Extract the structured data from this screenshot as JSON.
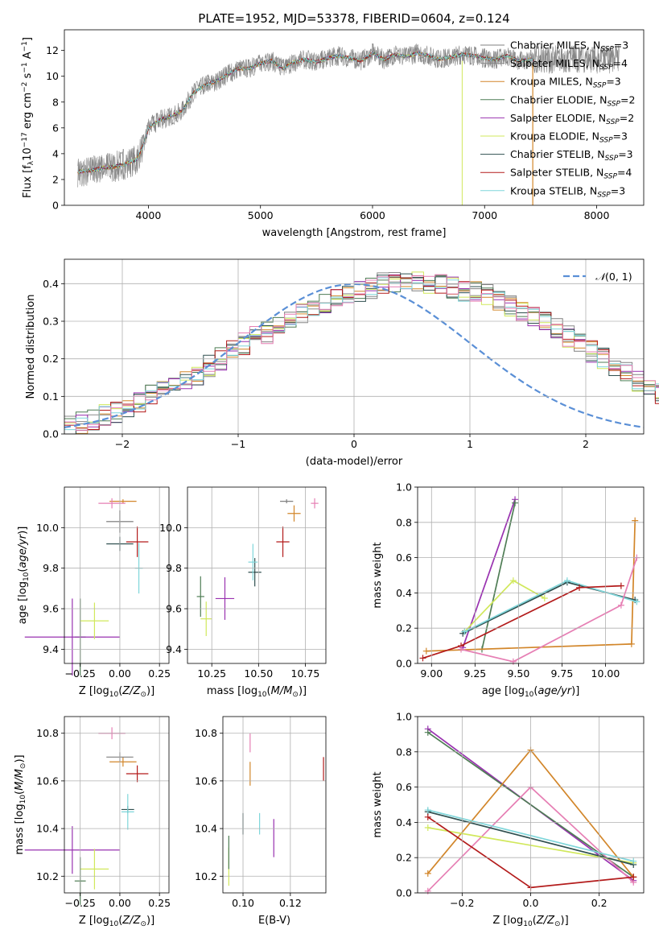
{
  "figure": {
    "title": "PLATE=1952, MJD=53378, FIBERID=0604, z=0.124"
  },
  "colors": {
    "Chabrier MILES": "#808080",
    "Salpeter MILES": "#8a8a8a",
    "Kroupa MILES": "#d2862a",
    "Chabrier ELODIE": "#4f7d55",
    "Salpeter ELODIE": "#9932b0",
    "Kroupa ELODIE": "#d1e85c",
    "Chabrier STELIB": "#2f4f4f",
    "Salpeter STELIB": "#b31b1b",
    "Kroupa STELIB": "#7fd6da",
    "normal": "#5a8fd6",
    "pink": "#e67fb4"
  },
  "chart_data": [
    {
      "id": "spectrum",
      "type": "line",
      "title": "PLATE=1952, MJD=53378, FIBERID=0604, z=0.124",
      "xlabel": "wavelength [Angstrom, rest frame]",
      "ylabel": "Flux [f_λ10^-17 erg cm^-2 s^-1 A^-1]",
      "xlim": [
        3250,
        8420
      ],
      "ylim": [
        0,
        13.6
      ],
      "xticks": [
        "4000",
        "5000",
        "6000",
        "7000",
        "8000"
      ],
      "yticks": [
        "0",
        "2",
        "4",
        "6",
        "8",
        "10",
        "12"
      ],
      "legend_position": "top-right",
      "series": [
        {
          "name": "Chabrier MILES, N_SSP=3",
          "label_main": "Chabrier MILES, N",
          "label_sub": "SSP",
          "label_tail": "=3",
          "color": "#808080"
        },
        {
          "name": "Salpeter MILES, N_SSP=4",
          "label_main": "Salpeter MILES, N",
          "label_sub": "SSP",
          "label_tail": "=4",
          "color": "#8a8a8a"
        },
        {
          "name": "Kroupa MILES, N_SSP=3",
          "label_main": "Kroupa MILES, N",
          "label_sub": "SSP",
          "label_tail": "=3",
          "color": "#d2862a"
        },
        {
          "name": "Chabrier ELODIE, N_SSP=2",
          "label_main": "Chabrier ELODIE, N",
          "label_sub": "SSP",
          "label_tail": "=2",
          "color": "#4f7d55"
        },
        {
          "name": "Salpeter ELODIE, N_SSP=2",
          "label_main": "Salpeter ELODIE, N",
          "label_sub": "SSP",
          "label_tail": "=2",
          "color": "#9932b0"
        },
        {
          "name": "Kroupa ELODIE, N_SSP=3",
          "label_main": "Kroupa ELODIE, N",
          "label_sub": "SSP",
          "label_tail": "=3",
          "color": "#d1e85c"
        },
        {
          "name": "Chabrier STELIB, N_SSP=3",
          "label_main": "Chabrier STELIB, N",
          "label_sub": "SSP",
          "label_tail": "=3",
          "color": "#2f4f4f"
        },
        {
          "name": "Salpeter STELIB, N_SSP=4",
          "label_main": "Salpeter STELIB, N",
          "label_sub": "SSP",
          "label_tail": "=4",
          "color": "#b31b1b"
        },
        {
          "name": "Kroupa STELIB, N_SSP=3",
          "label_main": "Kroupa STELIB, N",
          "label_sub": "SSP",
          "label_tail": "=3",
          "color": "#7fd6da"
        }
      ],
      "continuum": [
        [
          3370,
          2.6
        ],
        [
          3480,
          2.7
        ],
        [
          3600,
          2.9
        ],
        [
          3700,
          3.0
        ],
        [
          3800,
          3.2
        ],
        [
          3900,
          3.6
        ],
        [
          3960,
          4.8
        ],
        [
          4000,
          6.0
        ],
        [
          4100,
          6.6
        ],
        [
          4200,
          6.9
        ],
        [
          4300,
          7.3
        ],
        [
          4400,
          8.7
        ],
        [
          4500,
          9.3
        ],
        [
          4600,
          9.6
        ],
        [
          4700,
          10.1
        ],
        [
          4800,
          10.6
        ],
        [
          4900,
          10.6
        ],
        [
          5000,
          11.0
        ],
        [
          5100,
          11.2
        ],
        [
          5200,
          10.6
        ],
        [
          5300,
          11.1
        ],
        [
          5400,
          11.3
        ],
        [
          5500,
          11.1
        ],
        [
          5600,
          11.4
        ],
        [
          5700,
          11.6
        ],
        [
          5800,
          11.4
        ],
        [
          5900,
          11.2
        ],
        [
          6000,
          11.8
        ],
        [
          6100,
          11.3
        ],
        [
          6200,
          11.7
        ],
        [
          6300,
          11.5
        ],
        [
          6400,
          11.8
        ],
        [
          6500,
          11.6
        ],
        [
          6600,
          11.3
        ],
        [
          6700,
          11.5
        ],
        [
          6800,
          11.7
        ],
        [
          6900,
          11.6
        ],
        [
          7000,
          11.4
        ],
        [
          7100,
          11.3
        ],
        [
          7200,
          11.6
        ],
        [
          7300,
          11.2
        ],
        [
          7400,
          11.3
        ]
      ]
    },
    {
      "id": "residuals",
      "type": "histogram",
      "xlabel": "(data-model)/error",
      "ylabel": "Normed distribution",
      "xlim": [
        -2.5,
        2.5
      ],
      "ylim": [
        0,
        0.465
      ],
      "xticks": [
        "−2",
        "−1",
        "0",
        "1",
        "2"
      ],
      "yticks": [
        "0.0",
        "0.1",
        "0.2",
        "0.3",
        "0.4"
      ],
      "legend": {
        "label": "N(0,1)",
        "position": "top-right"
      },
      "bin_width": 0.1,
      "series": [
        {
          "color": "#808080",
          "values": [
            0.02,
            0.03,
            0.04,
            0.05,
            0.06,
            0.07,
            0.08,
            0.1,
            0.11,
            0.13,
            0.15,
            0.16,
            0.18,
            0.2,
            0.22,
            0.24,
            0.26,
            0.27,
            0.29,
            0.31,
            0.32,
            0.34,
            0.35,
            0.36,
            0.37,
            0.38,
            0.39,
            0.4,
            0.4,
            0.4,
            0.41,
            0.4,
            0.4,
            0.39,
            0.38,
            0.38,
            0.37,
            0.35,
            0.34,
            0.33,
            0.31,
            0.3,
            0.28,
            0.26,
            0.24,
            0.22,
            0.2,
            0.18,
            0.16,
            0.14,
            0.13,
            0.11,
            0.1,
            0.09,
            0.08,
            0.07,
            0.06,
            0.05,
            0.05,
            0.04
          ]
        }
      ]
    },
    {
      "id": "age-vs-Z",
      "type": "errorbar",
      "xlabel": "Z [log10(Z/Z⊙)]",
      "ylabel": "age [log10(age/yr)]",
      "xlim": [
        -0.35,
        0.31
      ],
      "ylim": [
        9.33,
        10.2
      ],
      "xticks": [
        "−0.25",
        "0.00",
        "0.25"
      ],
      "yticks": [
        "9.4",
        "9.6",
        "9.8",
        "10.0"
      ],
      "points": [
        {
          "series": "Chabrier MILES",
          "x": 0.0,
          "xerr": 0.17,
          "y": 10.03,
          "yerr": 0.11
        },
        {
          "series": "Kroupa MILES",
          "x": 0.02,
          "xerr": 0.17,
          "y": 10.13,
          "yerr": 0.02
        },
        {
          "series": "Salpeter MILES",
          "x": 0.0,
          "xerr": 0.17,
          "y": 10.03,
          "yerr": 0.11
        },
        {
          "series": "Chabrier ELODIE",
          "x": -0.25,
          "xerr": 0.07,
          "y": 9.46,
          "yerr": 0.38
        },
        {
          "series": "Salpeter ELODIE",
          "x": -0.3,
          "xerr": 0.6,
          "y": 9.46,
          "yerr": 0.38
        },
        {
          "series": "Kroupa ELODIE",
          "x": -0.16,
          "xerr": 0.18,
          "y": 9.54,
          "yerr": 0.18
        },
        {
          "series": "Chabrier STELIB",
          "x": 0.0,
          "xerr": 0.17,
          "y": 9.92,
          "yerr": 0.07
        },
        {
          "series": "Salpeter STELIB",
          "x": 0.11,
          "xerr": 0.14,
          "y": 9.93,
          "yerr": 0.15
        },
        {
          "series": "Kroupa STELIB",
          "x": 0.12,
          "xerr": 0.05,
          "y": 9.8,
          "yerr": 0.25
        },
        {
          "series": "pink",
          "x": -0.05,
          "xerr": 0.17,
          "y": 10.12,
          "yerr": 0.05
        }
      ]
    },
    {
      "id": "age-vs-mass",
      "type": "errorbar",
      "xlabel": "mass [log10(M/M⊙)]",
      "xlim": [
        10.12,
        10.86
      ],
      "ylim": [
        9.33,
        10.2
      ],
      "xticks": [
        "10.25",
        "10.50",
        "10.75"
      ],
      "yticks": [
        "9.4",
        "9.6",
        "9.8",
        "10.0"
      ],
      "points": [
        {
          "series": "Chabrier MILES",
          "x": 10.65,
          "xerr": 0.07,
          "y": 10.13,
          "yerr": 0.02
        },
        {
          "series": "Kroupa MILES",
          "x": 10.69,
          "xerr": 0.07,
          "y": 10.07,
          "yerr": 0.08
        },
        {
          "series": "Chabrier ELODIE",
          "x": 10.19,
          "xerr": 0.04,
          "y": 9.66,
          "yerr": 0.2
        },
        {
          "series": "Salpeter ELODIE",
          "x": 10.32,
          "xerr": 0.1,
          "y": 9.65,
          "yerr": 0.21
        },
        {
          "series": "Kroupa ELODIE",
          "x": 10.22,
          "xerr": 0.06,
          "y": 9.55,
          "yerr": 0.17
        },
        {
          "series": "Chabrier STELIB",
          "x": 10.48,
          "xerr": 0.07,
          "y": 9.78,
          "yerr": 0.14
        },
        {
          "series": "Salpeter STELIB",
          "x": 10.63,
          "xerr": 0.07,
          "y": 9.93,
          "yerr": 0.15
        },
        {
          "series": "Kroupa STELIB",
          "x": 10.47,
          "xerr": 0.05,
          "y": 9.83,
          "yerr": 0.18
        },
        {
          "series": "pink",
          "x": 10.8,
          "xerr": 0.04,
          "y": 10.12,
          "yerr": 0.05
        }
      ]
    },
    {
      "id": "weight-vs-age",
      "type": "line",
      "xlabel": "age [log10(age/yr)]",
      "ylabel": "mass weight",
      "xlim": [
        8.92,
        10.22
      ],
      "ylim": [
        0,
        1
      ],
      "xticks": [
        "9.00",
        "9.25",
        "9.50",
        "9.75",
        "10.00"
      ],
      "yticks": [
        "0.0",
        "0.2",
        "0.4",
        "0.6",
        "0.8",
        "1.0"
      ],
      "series": [
        {
          "series": "Salpeter ELODIE",
          "x": [
            9.18,
            9.48
          ],
          "y": [
            0.09,
            0.93
          ]
        },
        {
          "series": "Chabrier ELODIE",
          "x": [
            9.29,
            9.48
          ],
          "y": [
            0.08,
            0.91
          ]
        },
        {
          "series": "Kroupa ELODIE",
          "x": [
            9.19,
            9.47,
            9.65
          ],
          "y": [
            0.18,
            0.47,
            0.37
          ]
        },
        {
          "series": "Kroupa MILES",
          "x": [
            8.97,
            10.15,
            10.17
          ],
          "y": [
            0.07,
            0.11,
            0.81
          ]
        },
        {
          "series": "Chabrier STELIB",
          "x": [
            9.18,
            9.78,
            10.17
          ],
          "y": [
            0.17,
            0.46,
            0.36
          ]
        },
        {
          "series": "Kroupa STELIB",
          "x": [
            9.19,
            9.78,
            10.18
          ],
          "y": [
            0.18,
            0.47,
            0.35
          ]
        },
        {
          "series": "Salpeter STELIB",
          "x": [
            8.95,
            9.17,
            9.85,
            10.09
          ],
          "y": [
            0.03,
            0.1,
            0.43,
            0.44
          ]
        },
        {
          "series": "pink",
          "x": [
            9.17,
            9.47,
            10.09,
            10.18
          ],
          "y": [
            0.08,
            0.01,
            0.33,
            0.6
          ]
        }
      ]
    },
    {
      "id": "mass-vs-Z",
      "type": "errorbar",
      "xlabel": "Z [log10(Z/Z⊙)]",
      "ylabel": "mass [log10(M/M⊙)]",
      "xlim": [
        -0.35,
        0.31
      ],
      "ylim": [
        10.13,
        10.87
      ],
      "xticks": [
        "−0.25",
        "0.00",
        "0.25"
      ],
      "yticks": [
        "10.2",
        "10.4",
        "10.6",
        "10.8"
      ],
      "points": [
        {
          "series": "Kroupa MILES",
          "x": 0.02,
          "xerr": 0.17,
          "y": 10.68,
          "yerr": 0.04
        },
        {
          "series": "Chabrier MILES",
          "x": 0.0,
          "xerr": 0.17,
          "y": 10.7,
          "yerr": 0.04
        },
        {
          "series": "Salpeter STELIB",
          "x": 0.11,
          "xerr": 0.14,
          "y": 10.63,
          "yerr": 0.07
        },
        {
          "series": "Chabrier STELIB",
          "x": 0.05,
          "xerr": 0.08,
          "y": 10.48,
          "yerr": 0.03
        },
        {
          "series": "Kroupa STELIB",
          "x": 0.05,
          "xerr": 0.08,
          "y": 10.47,
          "yerr": 0.15
        },
        {
          "series": "Salpeter ELODIE",
          "x": -0.3,
          "xerr": 0.6,
          "y": 10.31,
          "yerr": 0.2
        },
        {
          "series": "Kroupa ELODIE",
          "x": -0.16,
          "xerr": 0.18,
          "y": 10.23,
          "yerr": 0.17
        },
        {
          "series": "Chabrier ELODIE",
          "x": -0.25,
          "xerr": 0.07,
          "y": 10.18,
          "yerr": 0.2
        },
        {
          "series": "pink",
          "x": -0.05,
          "xerr": 0.17,
          "y": 10.8,
          "yerr": 0.05
        }
      ]
    },
    {
      "id": "mass-vs-EBV",
      "type": "errorbar",
      "xlabel": "E(B-V)",
      "xlim": [
        0.0915,
        0.135
      ],
      "ylim": [
        10.13,
        10.87
      ],
      "xticks": [
        "0.10",
        "0.12"
      ],
      "yticks": [
        "10.2",
        "10.4",
        "10.6",
        "10.8"
      ],
      "points": [
        {
          "series": "Kroupa ELODIE",
          "x": 0.094,
          "y": 10.24,
          "yerr": 0.16
        },
        {
          "series": "Chabrier ELODIE",
          "x": 0.094,
          "y": 10.3,
          "yerr": 0.14
        },
        {
          "series": "Chabrier STELIB",
          "x": 0.1,
          "y": 10.42,
          "yerr": 0.09
        },
        {
          "series": "Kroupa MILES",
          "x": 0.103,
          "y": 10.63,
          "yerr": 0.1
        },
        {
          "series": "pink",
          "x": 0.103,
          "y": 10.76,
          "yerr": 0.08
        },
        {
          "series": "Kroupa STELIB",
          "x": 0.107,
          "y": 10.42,
          "yerr": 0.09
        },
        {
          "series": "Salpeter ELODIE",
          "x": 0.113,
          "y": 10.36,
          "yerr": 0.16
        },
        {
          "series": "Salpeter STELIB",
          "x": 0.134,
          "y": 10.65,
          "yerr": 0.1
        }
      ]
    },
    {
      "id": "weight-vs-Z",
      "type": "line",
      "xlabel": "Z [log10(Z/Z⊙)]",
      "ylabel": "mass weight",
      "xlim": [
        -0.33,
        0.33
      ],
      "ylim": [
        0,
        1
      ],
      "xticks": [
        "−0.2",
        "0.0",
        "0.2"
      ],
      "yticks": [
        "0.0",
        "0.2",
        "0.4",
        "0.6",
        "0.8",
        "1.0"
      ],
      "series": [
        {
          "series": "Salpeter ELODIE",
          "x": [
            -0.3,
            0.3
          ],
          "y": [
            0.93,
            0.07
          ]
        },
        {
          "series": "Chabrier ELODIE",
          "x": [
            -0.3,
            0.3
          ],
          "y": [
            0.91,
            0.09
          ]
        },
        {
          "series": "Kroupa MILES",
          "x": [
            -0.3,
            0.0,
            0.3
          ],
          "y": [
            0.11,
            0.81,
            0.09
          ]
        },
        {
          "series": "pink",
          "x": [
            -0.3,
            0.0,
            0.3
          ],
          "y": [
            0.01,
            0.6,
            0.06
          ]
        },
        {
          "series": "Kroupa ELODIE",
          "x": [
            -0.3,
            0.3
          ],
          "y": [
            0.37,
            0.17
          ]
        },
        {
          "series": "Chabrier STELIB",
          "x": [
            -0.3,
            0.3
          ],
          "y": [
            0.46,
            0.16
          ]
        },
        {
          "series": "Kroupa STELIB",
          "x": [
            -0.3,
            0.3
          ],
          "y": [
            0.47,
            0.18
          ]
        },
        {
          "series": "Salpeter STELIB",
          "x": [
            -0.3,
            0.0,
            0.3
          ],
          "y": [
            0.43,
            0.03,
            0.09
          ]
        }
      ]
    }
  ]
}
